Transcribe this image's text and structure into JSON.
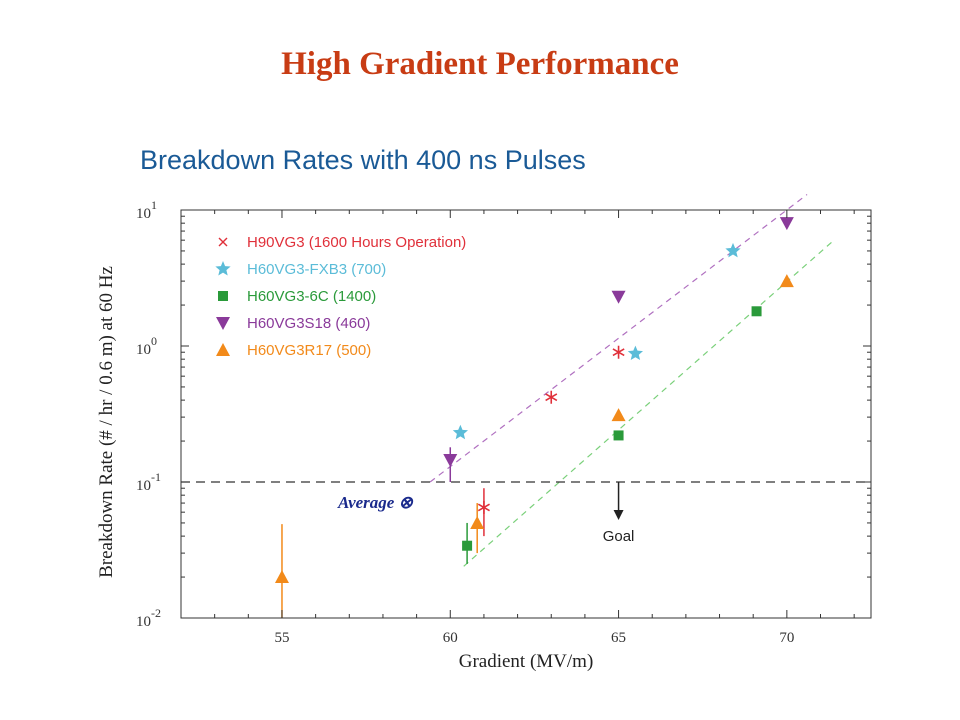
{
  "slide": {
    "title": "High Gradient Performance"
  },
  "chart_data": {
    "type": "scatter",
    "title": "Breakdown Rates with 400 ns Pulses",
    "xlabel": "Gradient (MV/m)",
    "ylabel": "Breakdown Rate (# / hr / 0.6 m) at 60 Hz",
    "xlim": [
      52,
      72.5
    ],
    "ylim": [
      0.01,
      10
    ],
    "y_scale": "log",
    "x_ticks": [
      55,
      60,
      65,
      70
    ],
    "x_tick_labels": [
      "55",
      "60",
      "65",
      "70"
    ],
    "y_ticks": [
      0.01,
      0.1,
      1,
      10
    ],
    "y_tick_labels": [
      {
        "base": "10",
        "exp": "-2"
      },
      {
        "base": "10",
        "exp": "-1"
      },
      {
        "base": "10",
        "exp": "0"
      },
      {
        "base": "10",
        "exp": "1"
      }
    ],
    "grid": false,
    "legend_position": "top-left",
    "series": [
      {
        "name": "H90VG3 (1600 Hours Operation)",
        "marker": "asterisk",
        "color": "#e0303a",
        "points": [
          {
            "x": 61.0,
            "y": 0.065
          },
          {
            "x": 63.0,
            "y": 0.42
          },
          {
            "x": 65.0,
            "y": 0.9
          }
        ],
        "error_bars": [
          {
            "x": 61.0,
            "low": 0.04,
            "high": 0.09
          }
        ]
      },
      {
        "name": "H60VG3-FXB3 (700)",
        "marker": "star",
        "color": "#5bbcd8",
        "points": [
          {
            "x": 60.3,
            "y": 0.23
          },
          {
            "x": 65.5,
            "y": 0.88
          },
          {
            "x": 68.4,
            "y": 5.0
          }
        ]
      },
      {
        "name": "H60VG3-6C (1400)",
        "marker": "square",
        "color": "#2a9a3a",
        "points": [
          {
            "x": 60.5,
            "y": 0.034
          },
          {
            "x": 65.0,
            "y": 0.22
          },
          {
            "x": 69.1,
            "y": 1.8
          }
        ],
        "error_bars": [
          {
            "x": 60.5,
            "low": 0.025,
            "high": 0.05
          }
        ]
      },
      {
        "name": "H60VG3S18 (460)",
        "marker": "triangle-down",
        "color": "#8a3a9a",
        "points": [
          {
            "x": 60.0,
            "y": 0.145
          },
          {
            "x": 65.0,
            "y": 2.3
          },
          {
            "x": 70.0,
            "y": 8.0
          }
        ],
        "error_bars": [
          {
            "x": 60.0,
            "low": 0.1,
            "high": 0.18
          }
        ]
      },
      {
        "name": "H60VG3R17 (500)",
        "marker": "triangle-up",
        "color": "#f28a1a",
        "points": [
          {
            "x": 55.0,
            "y": 0.02
          },
          {
            "x": 60.8,
            "y": 0.05
          },
          {
            "x": 65.0,
            "y": 0.31
          },
          {
            "x": 70.0,
            "y": 3.0
          }
        ],
        "error_bars": [
          {
            "x": 55.0,
            "low": 0.01,
            "high": 0.049
          },
          {
            "x": 60.8,
            "low": 0.03,
            "high": 0.07
          }
        ]
      }
    ],
    "fit_lines": [
      {
        "color": "#b070c0",
        "from": {
          "x": 59.4,
          "y": 0.1
        },
        "to": {
          "x": 70.6,
          "y": 13
        }
      },
      {
        "color": "#7ad07a",
        "from": {
          "x": 60.4,
          "y": 0.024
        },
        "to": {
          "x": 71.4,
          "y": 6
        }
      }
    ],
    "reference_line": {
      "y": 0.1,
      "style": "dashed",
      "color": "#333333"
    },
    "annotations": {
      "goal": {
        "text": "Goal",
        "x": 65.0,
        "y": 0.1
      },
      "average": {
        "text": "Average ⊗"
      }
    }
  }
}
